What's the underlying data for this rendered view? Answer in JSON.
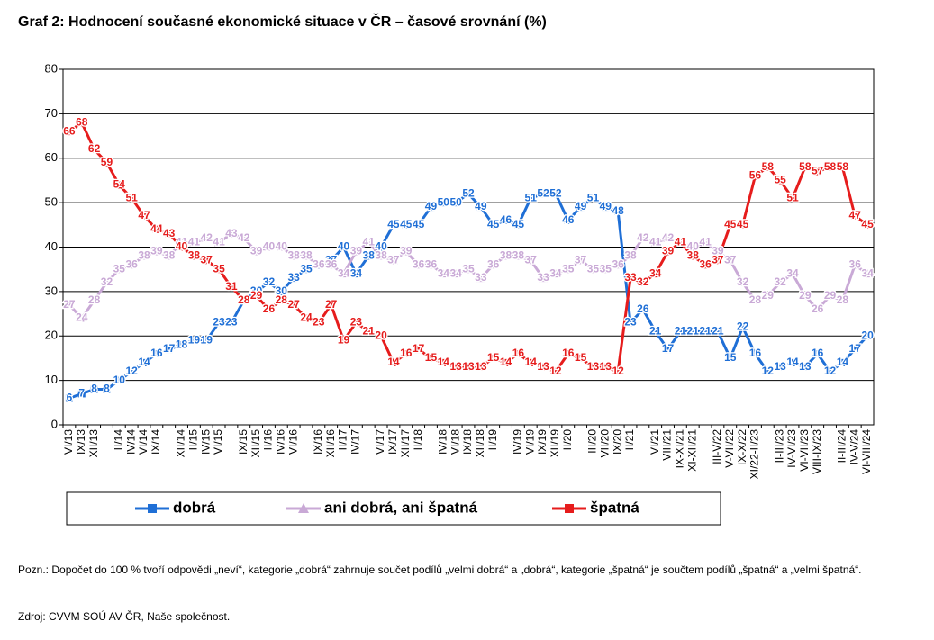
{
  "chart_data": {
    "type": "line",
    "title": "Graf 2: Hodnocení současné ekonomické situace v ČR – časové srovnání (%)",
    "categories": [
      "VI/13",
      "IX/13",
      "XII/13",
      null,
      "II/14",
      "IV/14",
      "VI/14",
      "IX/14",
      null,
      "XII/14",
      "II/15",
      "IV/15",
      "VI/15",
      null,
      "IX/15",
      "XII/15",
      "II/16",
      "IV/16",
      "VI/16",
      null,
      "IX/16",
      "XII/16",
      "II/17",
      "IV/17",
      null,
      "VI/17",
      "IX/17",
      "XII/17",
      "II/18",
      null,
      "IV/18",
      "VI/18",
      "IX/18",
      "XII/18",
      "II/19",
      null,
      "IV/19",
      "VI/19",
      "IX/19",
      "XII/19",
      "II/20",
      null,
      "III/20",
      "VII/20",
      "IX/20",
      "II/21",
      null,
      "VI/21",
      "VIII/21",
      "IX-XI/21",
      "XI-XII/21",
      null,
      "III-V/22",
      "V-VII/22",
      "IX-X/22",
      "XI/22-II/23",
      null,
      "II-III/23",
      "IV-VI/23",
      "VI-VII/23",
      "VIII-IX/23",
      null,
      "II-III/24",
      "IV-V/24",
      "VI-VIII/24"
    ],
    "series": [
      {
        "name": "dobrá",
        "color": "#1f6fd6",
        "marker": "square",
        "values": [
          6,
          7,
          8,
          8,
          10,
          12,
          14,
          16,
          17,
          18,
          19,
          19,
          23,
          23,
          28,
          30,
          32,
          30,
          33,
          35,
          36,
          37,
          40,
          34,
          38,
          40,
          45,
          45,
          45,
          49,
          50,
          50,
          52,
          49,
          45,
          46,
          45,
          51,
          52,
          52,
          46,
          49,
          51,
          49,
          48,
          23,
          26,
          21,
          17,
          21,
          21,
          21,
          21,
          15,
          22,
          16,
          12,
          13,
          14,
          13,
          16,
          12,
          14,
          17,
          20
        ]
      },
      {
        "name": "ani dobrá, ani špatná",
        "color": "#c9a9d6",
        "marker": "triangle",
        "values": [
          27,
          24,
          28,
          32,
          35,
          36,
          38,
          39,
          38,
          41,
          41,
          42,
          41,
          43,
          42,
          39,
          40,
          40,
          38,
          38,
          36,
          36,
          34,
          39,
          41,
          38,
          37,
          39,
          36,
          36,
          34,
          34,
          35,
          33,
          36,
          38,
          38,
          37,
          33,
          34,
          35,
          37,
          35,
          35,
          36,
          38,
          42,
          41,
          42,
          41,
          40,
          41,
          39,
          37,
          32,
          28,
          29,
          32,
          34,
          29,
          26,
          29,
          28,
          36,
          34
        ]
      },
      {
        "name": "špatná",
        "color": "#e61c1c",
        "marker": "square",
        "values": [
          66,
          68,
          62,
          59,
          54,
          51,
          47,
          44,
          43,
          40,
          38,
          37,
          35,
          31,
          28,
          29,
          26,
          28,
          27,
          24,
          23,
          27,
          19,
          23,
          21,
          20,
          14,
          16,
          17,
          15,
          14,
          13,
          13,
          13,
          15,
          14,
          16,
          14,
          13,
          12,
          16,
          15,
          13,
          13,
          12,
          33,
          32,
          34,
          39,
          41,
          38,
          36,
          37,
          45,
          45,
          56,
          58,
          55,
          51,
          58,
          57,
          58,
          58,
          47,
          45
        ]
      }
    ],
    "ylim": [
      0,
      80
    ],
    "yticks": [
      0,
      10,
      20,
      30,
      40,
      50,
      60,
      70,
      80
    ],
    "grid": true,
    "legend": "bottom",
    "note": "Pozn.: Dopočet do 100 % tvoří odpovědi „neví“, kategorie „dobrá“ zahrnuje součet podílů „velmi dobrá“ a „dobrá“, kategorie „špatná“ je součtem podílů „špatná“ a „velmi špatná“.",
    "source": "Zdroj: CVVM SOÚ AV ČR, Naše společnost."
  }
}
